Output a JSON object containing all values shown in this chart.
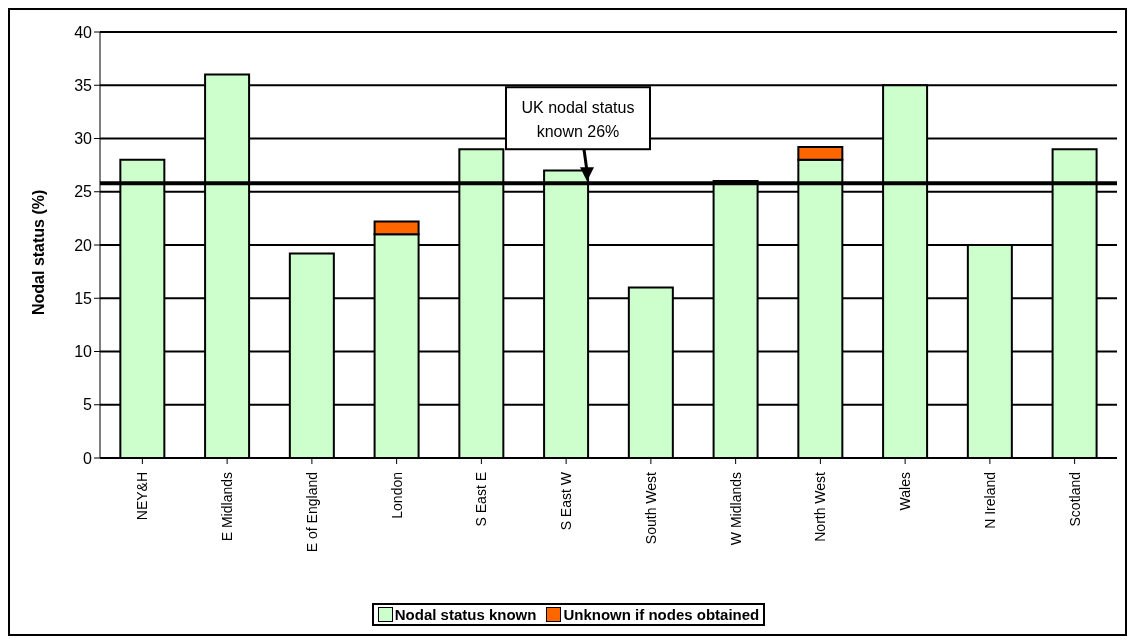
{
  "chart_data": {
    "type": "bar",
    "ylabel": "Nodal status (%)",
    "categories": [
      "NEY&H",
      "E Midlands",
      "E of England",
      "London",
      "S East E",
      "S East W",
      "South West",
      "W Midlands",
      "North West",
      "Wales",
      "N Ireland",
      "Scotland"
    ],
    "stacked": true,
    "series": [
      {
        "name": "Nodal status known",
        "color": "#ccffcc",
        "values": [
          28,
          36,
          19.2,
          21,
          29,
          27,
          16,
          26,
          28,
          35,
          20,
          29
        ]
      },
      {
        "name": "Unknown if nodes obtained",
        "color": "#ff6600",
        "values": [
          0,
          0,
          0,
          1.2,
          0,
          0,
          0,
          0,
          1.2,
          0,
          0,
          0
        ]
      }
    ],
    "ylim": [
      0,
      40
    ],
    "yticks": [
      0,
      5,
      10,
      15,
      20,
      25,
      30,
      35,
      40
    ],
    "grid": "y",
    "legend": "bottom",
    "ref_lines": [
      {
        "axis": "y",
        "value": 25.8,
        "label": "UK nodal status known 26%"
      }
    ]
  }
}
